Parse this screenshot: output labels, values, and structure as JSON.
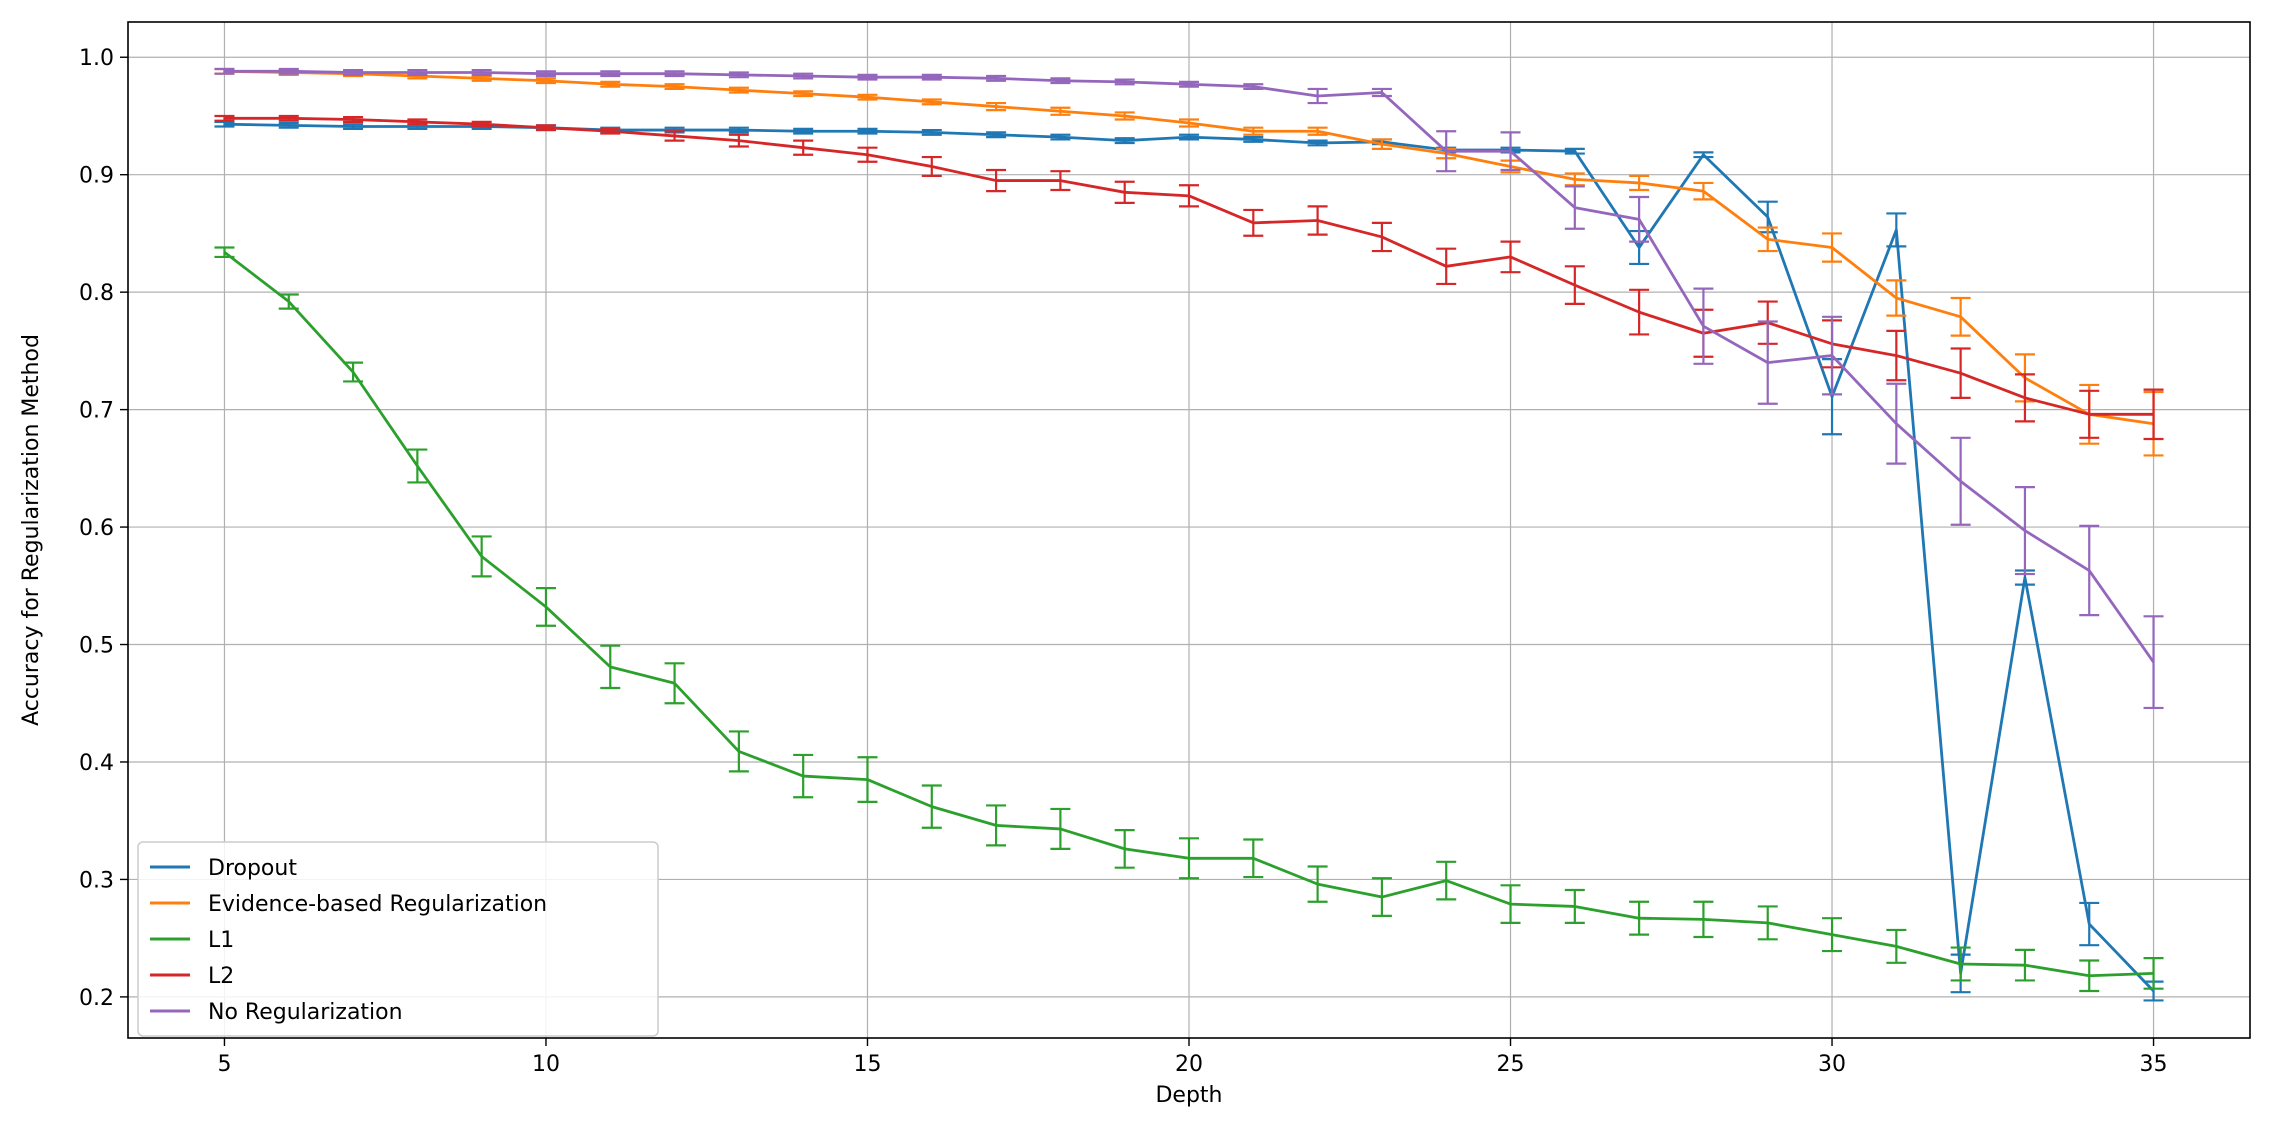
{
  "chart_data": {
    "type": "line",
    "title": "",
    "xlabel": "Depth",
    "ylabel": "Accuracy for Regularization Method",
    "xlim": [
      3.5,
      36.5
    ],
    "ylim": [
      0.165,
      1.03
    ],
    "xticks": [
      5,
      10,
      15,
      20,
      25,
      30,
      35
    ],
    "yticks": [
      0.2,
      0.3,
      0.4,
      0.5,
      0.6,
      0.7,
      0.8,
      0.9,
      1.0
    ],
    "xtick_labels": [
      "5",
      "10",
      "15",
      "20",
      "25",
      "30",
      "35"
    ],
    "ytick_labels": [
      "0.2",
      "0.3",
      "0.4",
      "0.5",
      "0.6",
      "0.7",
      "0.8",
      "0.9",
      "1.0"
    ],
    "grid": true,
    "legend_position": "lower-left",
    "x": [
      5,
      6,
      7,
      8,
      9,
      10,
      11,
      12,
      13,
      14,
      15,
      16,
      17,
      18,
      19,
      20,
      21,
      22,
      23,
      24,
      25,
      26,
      27,
      28,
      29,
      30,
      31,
      32,
      33,
      34,
      35
    ],
    "series": [
      {
        "name": "Dropout",
        "color": "#1f77b4",
        "values": [
          0.943,
          0.942,
          0.941,
          0.941,
          0.941,
          0.94,
          0.938,
          0.938,
          0.938,
          0.937,
          0.937,
          0.936,
          0.934,
          0.932,
          0.929,
          0.932,
          0.93,
          0.927,
          0.928,
          0.921,
          0.921,
          0.92,
          0.838,
          0.917,
          0.864,
          0.711,
          0.853,
          0.22,
          0.557,
          0.262,
          0.205
        ],
        "errors": [
          0.002,
          0.002,
          0.002,
          0.002,
          0.002,
          0.002,
          0.002,
          0.002,
          0.002,
          0.002,
          0.002,
          0.002,
          0.002,
          0.002,
          0.002,
          0.002,
          0.002,
          0.002,
          0.002,
          0.002,
          0.002,
          0.002,
          0.014,
          0.002,
          0.013,
          0.032,
          0.014,
          0.016,
          0.006,
          0.018,
          0.008
        ]
      },
      {
        "name": "Evidence-based Regularization",
        "color": "#ff7f0e",
        "values": [
          0.988,
          0.987,
          0.986,
          0.984,
          0.982,
          0.98,
          0.977,
          0.975,
          0.972,
          0.969,
          0.966,
          0.962,
          0.958,
          0.954,
          0.95,
          0.944,
          0.937,
          0.937,
          0.926,
          0.918,
          0.907,
          0.896,
          0.893,
          0.886,
          0.845,
          0.838,
          0.795,
          0.779,
          0.727,
          0.696,
          0.688
        ],
        "errors": [
          0.002,
          0.002,
          0.002,
          0.002,
          0.002,
          0.002,
          0.002,
          0.002,
          0.002,
          0.002,
          0.002,
          0.002,
          0.003,
          0.003,
          0.003,
          0.003,
          0.003,
          0.003,
          0.004,
          0.004,
          0.005,
          0.005,
          0.006,
          0.007,
          0.01,
          0.012,
          0.015,
          0.016,
          0.02,
          0.025,
          0.027
        ]
      },
      {
        "name": "L1",
        "color": "#2ca02c",
        "values": [
          0.834,
          0.792,
          0.732,
          0.652,
          0.575,
          0.532,
          0.481,
          0.467,
          0.409,
          0.388,
          0.385,
          0.362,
          0.346,
          0.343,
          0.326,
          0.318,
          0.318,
          0.296,
          0.285,
          0.299,
          0.279,
          0.277,
          0.267,
          0.266,
          0.263,
          0.253,
          0.243,
          0.228,
          0.227,
          0.218,
          0.22
        ],
        "errors": [
          0.004,
          0.006,
          0.008,
          0.014,
          0.017,
          0.016,
          0.018,
          0.017,
          0.017,
          0.018,
          0.019,
          0.018,
          0.017,
          0.017,
          0.016,
          0.017,
          0.016,
          0.015,
          0.016,
          0.016,
          0.016,
          0.014,
          0.014,
          0.015,
          0.014,
          0.014,
          0.014,
          0.014,
          0.013,
          0.013,
          0.013
        ]
      },
      {
        "name": "L2",
        "color": "#d62728",
        "values": [
          0.948,
          0.948,
          0.947,
          0.945,
          0.943,
          0.94,
          0.937,
          0.933,
          0.929,
          0.923,
          0.917,
          0.907,
          0.895,
          0.895,
          0.885,
          0.882,
          0.859,
          0.861,
          0.847,
          0.822,
          0.83,
          0.806,
          0.783,
          0.765,
          0.774,
          0.756,
          0.746,
          0.731,
          0.71,
          0.696,
          0.696
        ],
        "errors": [
          0.002,
          0.002,
          0.002,
          0.002,
          0.002,
          0.002,
          0.002,
          0.004,
          0.005,
          0.006,
          0.006,
          0.008,
          0.009,
          0.008,
          0.009,
          0.009,
          0.011,
          0.012,
          0.012,
          0.015,
          0.013,
          0.016,
          0.019,
          0.02,
          0.018,
          0.02,
          0.021,
          0.021,
          0.02,
          0.02,
          0.021
        ]
      },
      {
        "name": "No Regularization",
        "color": "#9467bd",
        "values": [
          0.988,
          0.988,
          0.987,
          0.987,
          0.987,
          0.986,
          0.986,
          0.986,
          0.985,
          0.984,
          0.983,
          0.983,
          0.982,
          0.98,
          0.979,
          0.977,
          0.975,
          0.967,
          0.97,
          0.92,
          0.92,
          0.872,
          0.862,
          0.771,
          0.74,
          0.746,
          0.688,
          0.639,
          0.597,
          0.563,
          0.485
        ],
        "errors": [
          0.002,
          0.002,
          0.002,
          0.002,
          0.002,
          0.002,
          0.002,
          0.002,
          0.002,
          0.002,
          0.002,
          0.002,
          0.002,
          0.002,
          0.002,
          0.002,
          0.002,
          0.006,
          0.003,
          0.017,
          0.016,
          0.018,
          0.019,
          0.032,
          0.035,
          0.033,
          0.034,
          0.037,
          0.037,
          0.038,
          0.039
        ]
      }
    ]
  }
}
